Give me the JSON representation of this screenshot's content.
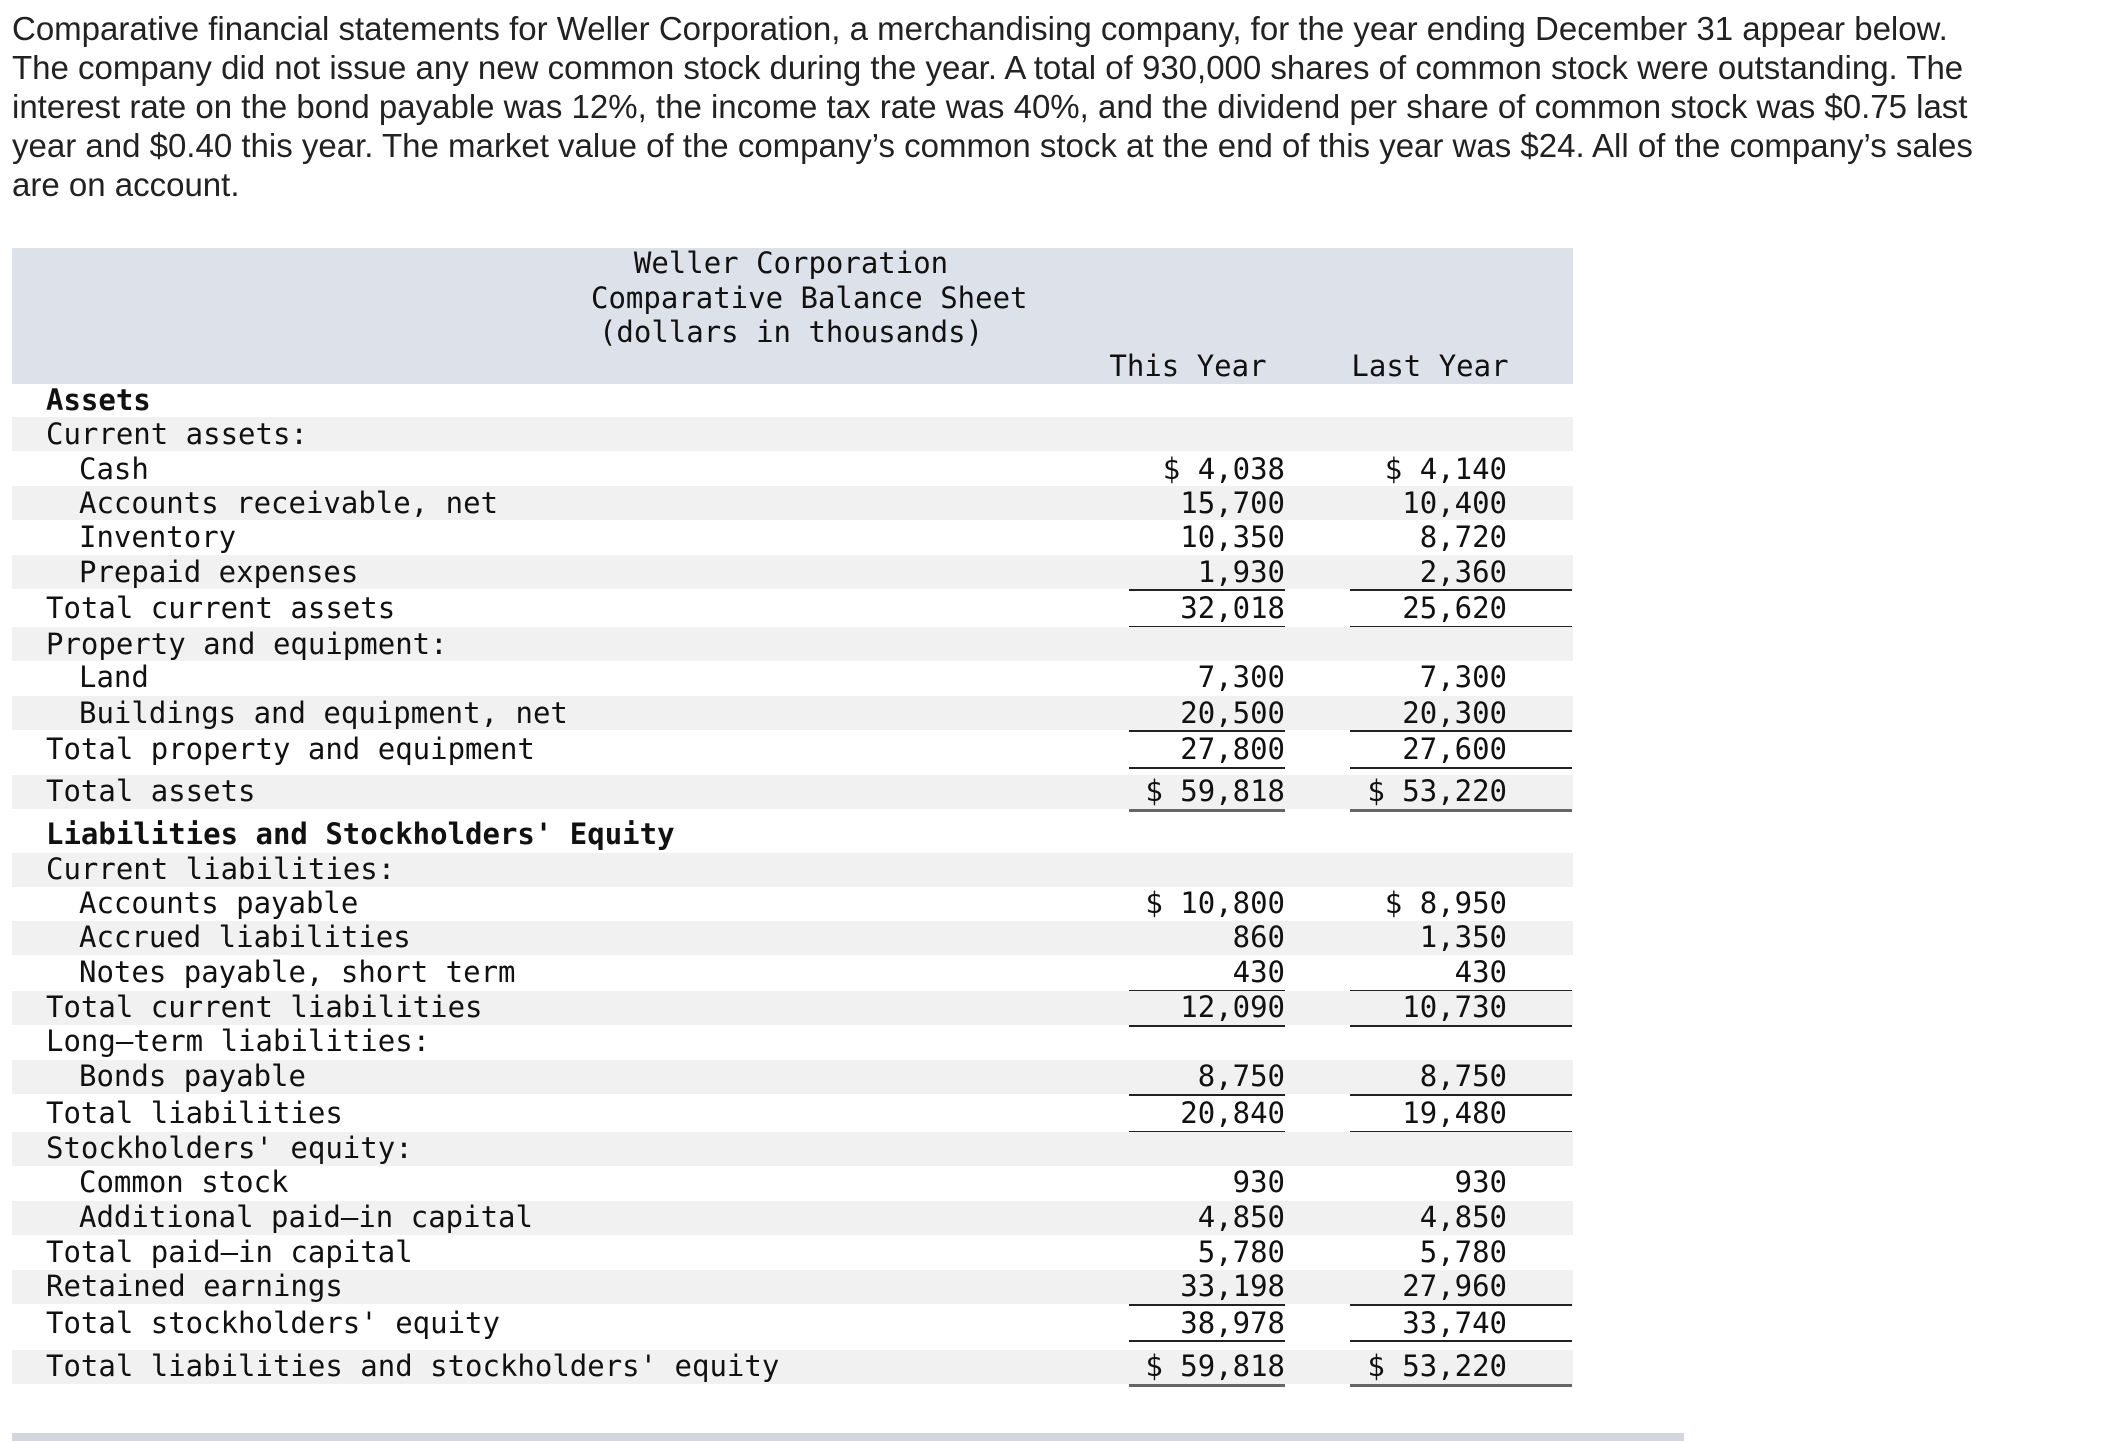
{
  "intro": [
    "Comparative financial statements for Weller Corporation, a merchandising company, for the year ending December 31 appear below.",
    "The company did not issue any new common stock during the year. A total of 930,000 shares of common stock were outstanding. The",
    "interest rate on the bond payable was 12%, the income tax rate was 40%, and the dividend per share of common stock was $0.75 last",
    "year and $0.40 this year. The market value of the company’s common stock at the end of this year was $24. All of the company’s sales",
    "are on account."
  ],
  "table": {
    "title": [
      "Weller Corporation",
      "Comparative Balance Sheet",
      "(dollars in thousands)"
    ],
    "columns": [
      "This Year",
      "Last Year"
    ],
    "rows": [
      {
        "label": "Assets"
      },
      {
        "label": "Current assets:"
      },
      {
        "label": "Cash",
        "this_year": "$ 4,038",
        "last_year": "$ 4,140"
      },
      {
        "label": "Accounts receivable, net",
        "this_year": "15,700",
        "last_year": "10,400"
      },
      {
        "label": "Inventory",
        "this_year": "10,350",
        "last_year": "8,720"
      },
      {
        "label": "Prepaid expenses",
        "this_year": "1,930",
        "last_year": "2,360"
      },
      {
        "label": "Total current assets",
        "this_year": "32,018",
        "last_year": "25,620"
      },
      {
        "label": "Property and equipment:"
      },
      {
        "label": "Land",
        "this_year": "7,300",
        "last_year": "7,300"
      },
      {
        "label": "Buildings and equipment, net",
        "this_year": "20,500",
        "last_year": "20,300"
      },
      {
        "label": "Total property and equipment",
        "this_year": "27,800",
        "last_year": "27,600"
      },
      {
        "label": "Total assets",
        "this_year": "$ 59,818",
        "last_year": "$ 53,220"
      },
      {
        "label": "Liabilities and Stockholders' Equity"
      },
      {
        "label": "Current liabilities:"
      },
      {
        "label": "Accounts payable",
        "this_year": "$ 10,800",
        "last_year": "$ 8,950"
      },
      {
        "label": "Accrued liabilities",
        "this_year": "860",
        "last_year": "1,350"
      },
      {
        "label": "Notes payable, short term",
        "this_year": "430",
        "last_year": "430"
      },
      {
        "label": "Total current liabilities",
        "this_year": "12,090",
        "last_year": "10,730"
      },
      {
        "label": "Long–term liabilities:"
      },
      {
        "label": "Bonds payable",
        "this_year": "8,750",
        "last_year": "8,750"
      },
      {
        "label": "Total liabilities",
        "this_year": "20,840",
        "last_year": "19,480"
      },
      {
        "label": "Stockholders' equity:"
      },
      {
        "label": "Common stock",
        "this_year": "930",
        "last_year": "930"
      },
      {
        "label": "Additional paid–in capital",
        "this_year": "4,850",
        "last_year": "4,850"
      },
      {
        "label": "Total paid–in capital",
        "this_year": "5,780",
        "last_year": "5,780"
      },
      {
        "label": "Retained earnings",
        "this_year": "33,198",
        "last_year": "27,960"
      },
      {
        "label": "Total stockholders' equity",
        "this_year": "38,978",
        "last_year": "33,740"
      },
      {
        "label": "Total liabilities and stockholders' equity",
        "this_year": "$ 59,818",
        "last_year": "$ 53,220"
      }
    ]
  }
}
